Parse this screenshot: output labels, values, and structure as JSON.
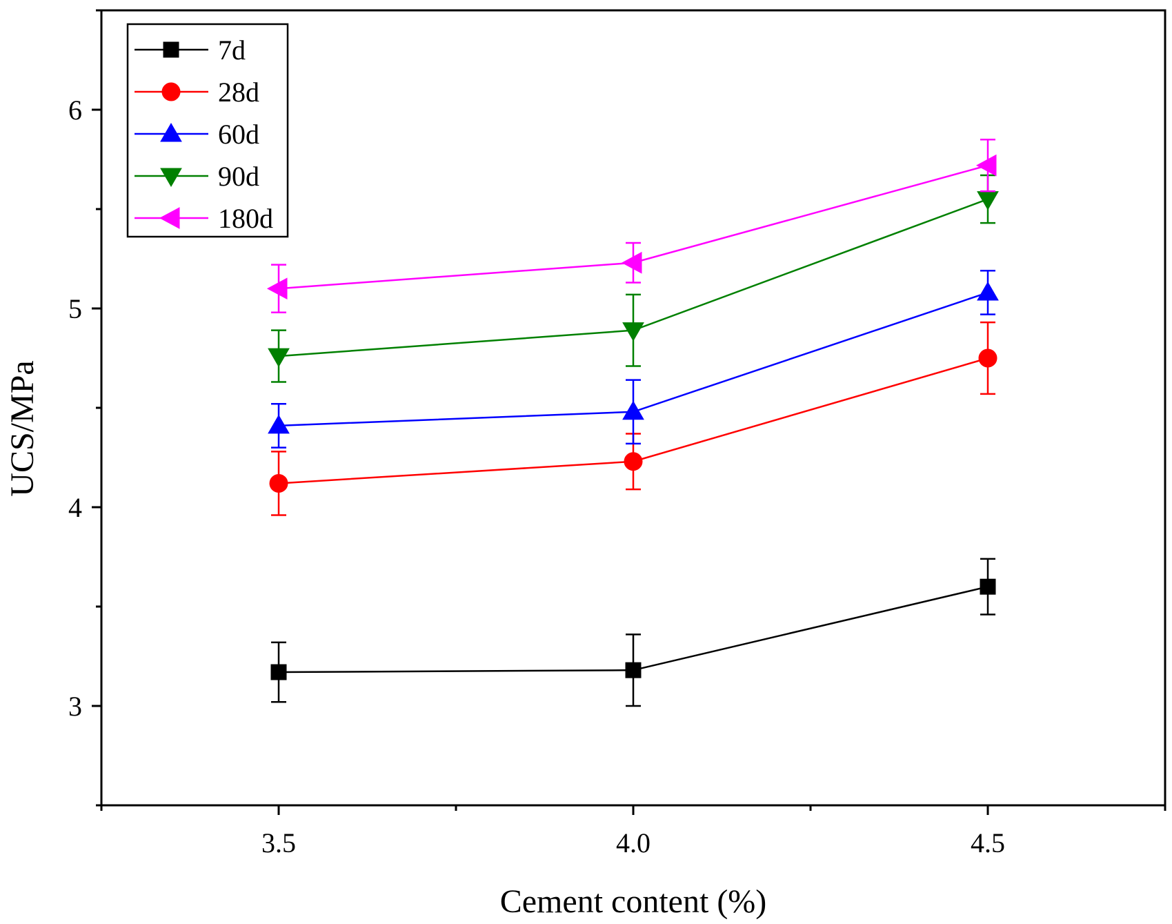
{
  "chart_data": {
    "type": "line",
    "title": "",
    "xlabel": "Cement content (%)",
    "ylabel": "UCS/MPa",
    "xlim": [
      3.25,
      4.75
    ],
    "ylim": [
      2.5,
      6.5
    ],
    "x": [
      3.5,
      4.0,
      4.5
    ],
    "x_tick_labels": [
      "3.5",
      "4.0",
      "4.5"
    ],
    "y_ticks": [
      3,
      4,
      5,
      6
    ],
    "y_tick_labels": [
      "3",
      "4",
      "5",
      "6"
    ],
    "grid": false,
    "legend_position": "top-left",
    "series": [
      {
        "name": "7d",
        "color": "#000000",
        "marker": "square",
        "values": [
          3.17,
          3.18,
          3.6
        ],
        "errors": [
          0.15,
          0.18,
          0.14
        ]
      },
      {
        "name": "28d",
        "color": "#ff0000",
        "marker": "circle",
        "values": [
          4.12,
          4.23,
          4.75
        ],
        "errors": [
          0.16,
          0.14,
          0.18
        ]
      },
      {
        "name": "60d",
        "color": "#0000ff",
        "marker": "triangle-up",
        "values": [
          4.41,
          4.48,
          5.08
        ],
        "errors": [
          0.11,
          0.16,
          0.11
        ]
      },
      {
        "name": "90d",
        "color": "#008000",
        "marker": "triangle-down",
        "values": [
          4.76,
          4.89,
          5.55
        ],
        "errors": [
          0.13,
          0.18,
          0.12
        ]
      },
      {
        "name": "180d",
        "color": "#ff00ff",
        "marker": "triangle-left",
        "values": [
          5.1,
          5.23,
          5.72
        ],
        "errors": [
          0.12,
          0.1,
          0.13
        ]
      }
    ]
  }
}
